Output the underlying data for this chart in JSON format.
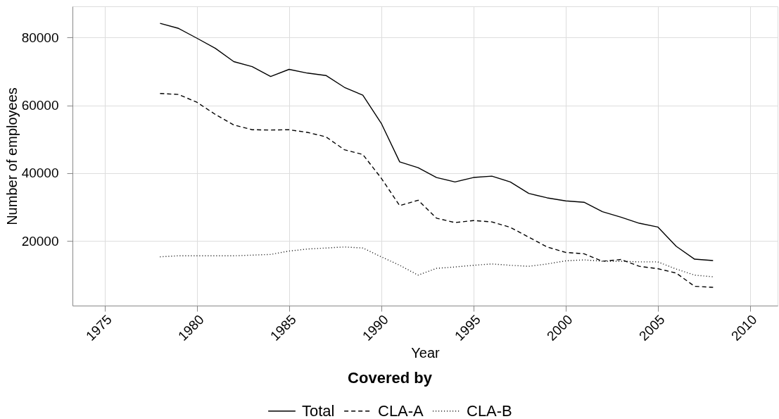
{
  "chart_data": {
    "type": "line",
    "xlabel": "Year",
    "ylabel": "Number of employees",
    "legend_title": "Covered by",
    "x": [
      1978,
      1979,
      1980,
      1981,
      1982,
      1983,
      1984,
      1985,
      1986,
      1987,
      1988,
      1989,
      1990,
      1991,
      1992,
      1993,
      1994,
      1995,
      1996,
      1997,
      1998,
      1999,
      2000,
      2001,
      2002,
      2003,
      2004,
      2005,
      2006,
      2007,
      2008
    ],
    "series": [
      {
        "name": "Total",
        "color": "#000000",
        "line_style": "solid",
        "values": [
          84200,
          82700,
          79800,
          76800,
          72900,
          71400,
          68500,
          70600,
          69500,
          68800,
          65300,
          63000,
          54700,
          43300,
          41600,
          38700,
          37400,
          38700,
          39100,
          37400,
          34000,
          32700,
          31800,
          31400,
          28600,
          27000,
          25200,
          24100,
          18400,
          14600,
          14200
        ]
      },
      {
        "name": "CLA-A",
        "color": "#000000",
        "line_style": "dashed",
        "values": [
          63500,
          63200,
          60900,
          57300,
          54200,
          52800,
          52700,
          52800,
          52000,
          50700,
          46900,
          45500,
          38500,
          30400,
          32000,
          26700,
          25400,
          26000,
          25600,
          24000,
          21100,
          18200,
          16600,
          16200,
          14000,
          14500,
          12500,
          11800,
          10500,
          6600,
          6300
        ]
      },
      {
        "name": "CLA-B",
        "color": "#000000",
        "line_style": "dotted",
        "values": [
          15300,
          15600,
          15600,
          15600,
          15600,
          15800,
          16000,
          17000,
          17600,
          17900,
          18200,
          17900,
          15300,
          12800,
          9900,
          11900,
          12300,
          12800,
          13200,
          12800,
          12500,
          13200,
          14100,
          14400,
          14000,
          14000,
          13800,
          13800,
          11700,
          9900,
          9400
        ]
      }
    ],
    "xlim": [
      1973.25,
      2011.5
    ],
    "ylim": [
      900,
      89200
    ],
    "xticks": [
      1975,
      1980,
      1985,
      1990,
      1995,
      2000,
      2005,
      2010
    ],
    "yticks": [
      20000,
      40000,
      60000,
      80000
    ],
    "grid": true,
    "legend": "bottom"
  }
}
